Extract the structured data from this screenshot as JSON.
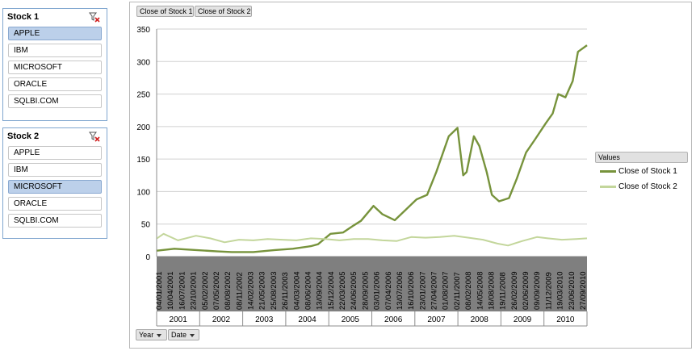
{
  "slicers": [
    {
      "title": "Stock 1",
      "clear_icon": "clear-filter-icon",
      "selected": "APPLE",
      "items": [
        "APPLE",
        "IBM",
        "MICROSOFT",
        "ORACLE",
        "SQLBI.COM"
      ]
    },
    {
      "title": "Stock 2",
      "clear_icon": "clear-filter-icon",
      "selected": "MICROSOFT",
      "items": [
        "APPLE",
        "IBM",
        "MICROSOFT",
        "ORACLE",
        "SQLBI.COM"
      ]
    }
  ],
  "pivot": {
    "value_fields": [
      "Close of Stock 1",
      "Close of Stock 2"
    ],
    "axis_fields": [
      {
        "label": "Year",
        "icon": "dropdown-arrow-icon"
      },
      {
        "label": "Date",
        "icon": "dropdown-arrow-icon"
      }
    ],
    "legend_title": "Values"
  },
  "chart_data": {
    "type": "line",
    "ylim": [
      0,
      350
    ],
    "yticks": [
      0,
      50,
      100,
      150,
      200,
      250,
      300,
      350
    ],
    "grid": true,
    "legend_position": "right",
    "date_ticks": [
      "04/01/2001",
      "10/04/2001",
      "16/07/2001",
      "23/10/2001",
      "05/02/2002",
      "07/05/2002",
      "08/08/2002",
      "08/11/2002",
      "14/02/2003",
      "21/05/2003",
      "25/08/2003",
      "26/11/2003",
      "04/03/2004",
      "08/06/2004",
      "13/09/2004",
      "15/12/2004",
      "22/03/2005",
      "24/06/2005",
      "28/09/2005",
      "03/01/2006",
      "07/04/2006",
      "13/07/2006",
      "16/10/2006",
      "23/01/2007",
      "27/04/2007",
      "01/08/2007",
      "02/11/2007",
      "08/02/2008",
      "14/05/2008",
      "18/08/2008",
      "19/11/2008",
      "26/02/2009",
      "02/06/2009",
      "09/09/2009",
      "11/12/2009",
      "19/03/2010",
      "23/06/2010",
      "27/09/2010"
    ],
    "year_groups": [
      "2001",
      "2002",
      "2003",
      "2004",
      "2005",
      "2006",
      "2007",
      "2008",
      "2009",
      "2010"
    ],
    "series": [
      {
        "name": "Close of Stock 1",
        "color": "#77933c",
        "x": [
          "2001-01-04",
          "2001-06-01",
          "2001-12-01",
          "2002-06-01",
          "2002-10-01",
          "2003-04-01",
          "2003-10-01",
          "2004-03-01",
          "2004-08-01",
          "2004-10-01",
          "2005-01-15",
          "2005-05-01",
          "2005-08-01",
          "2005-10-01",
          "2006-01-15",
          "2006-04-01",
          "2006-07-15",
          "2006-10-15",
          "2007-01-15",
          "2007-04-15",
          "2007-07-01",
          "2007-10-15",
          "2007-12-28",
          "2008-02-15",
          "2008-03-15",
          "2008-05-15",
          "2008-07-01",
          "2008-09-01",
          "2008-10-15",
          "2008-12-15",
          "2009-03-09",
          "2009-05-15",
          "2009-08-01",
          "2009-10-15",
          "2010-01-15",
          "2010-03-15",
          "2010-05-01",
          "2010-07-01",
          "2010-09-01",
          "2010-10-15",
          "2010-12-31"
        ],
        "y": [
          9,
          12,
          10,
          8,
          7,
          7,
          10,
          12,
          16,
          19,
          35,
          37,
          48,
          55,
          78,
          65,
          56,
          72,
          88,
          95,
          130,
          185,
          198,
          125,
          130,
          185,
          170,
          130,
          95,
          85,
          90,
          120,
          160,
          180,
          205,
          220,
          250,
          245,
          270,
          315,
          325
        ]
      },
      {
        "name": "Close of Stock 2",
        "color": "#c3d69b",
        "x": [
          "2001-01-04",
          "2001-03-01",
          "2001-07-01",
          "2001-12-01",
          "2002-04-01",
          "2002-08-01",
          "2002-12-01",
          "2003-04-01",
          "2003-08-01",
          "2003-12-01",
          "2004-04-01",
          "2004-08-01",
          "2004-12-01",
          "2005-04-01",
          "2005-08-01",
          "2005-12-01",
          "2006-04-01",
          "2006-08-01",
          "2006-12-01",
          "2007-04-01",
          "2007-08-01",
          "2007-12-01",
          "2008-04-01",
          "2008-08-01",
          "2008-12-01",
          "2009-03-01",
          "2009-07-01",
          "2009-11-01",
          "2010-02-01",
          "2010-06-01",
          "2010-10-01",
          "2010-12-31"
        ],
        "y": [
          28,
          35,
          25,
          32,
          28,
          22,
          26,
          25,
          27,
          26,
          25,
          28,
          27,
          25,
          27,
          27,
          25,
          24,
          30,
          29,
          30,
          32,
          29,
          26,
          20,
          17,
          24,
          30,
          28,
          26,
          27,
          28
        ]
      }
    ]
  }
}
